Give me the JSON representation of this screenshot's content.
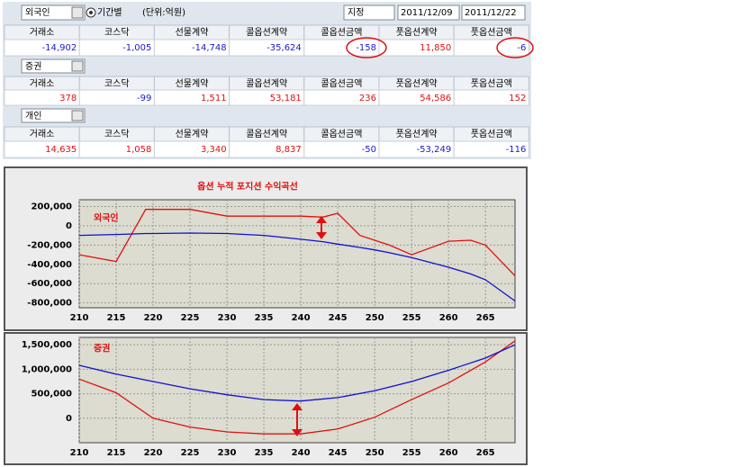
{
  "toolbar": {
    "investor": "외국인",
    "mode": "기간별",
    "unit": "(단위:억원)",
    "range_type": "지정",
    "start": "2011/12/09",
    "end": "2011/12/22"
  },
  "tables": [
    {
      "headers": [
        "거래소",
        "코스닥",
        "선물계약",
        "콜옵션계약",
        "콜옵션금액",
        "풋옵션계약",
        "풋옵션금액"
      ],
      "values": [
        "-14,902",
        "-1,005",
        "-14,748",
        "-35,624",
        "-158",
        "11,850",
        "-6"
      ]
    },
    {
      "label": "증권",
      "headers": [
        "거래소",
        "코스닥",
        "선물계약",
        "콜옵션계약",
        "콜옵션금액",
        "풋옵션계약",
        "풋옵션금액"
      ],
      "values": [
        "378",
        "-99",
        "1,511",
        "53,181",
        "236",
        "54,586",
        "152"
      ]
    },
    {
      "label": "개인",
      "headers": [
        "거래소",
        "코스닥",
        "선물계약",
        "콜옵션계약",
        "콜옵션금액",
        "풋옵션계약",
        "풋옵션금액"
      ],
      "values": [
        "14,635",
        "1,058",
        "3,340",
        "8,837",
        "-50",
        "-53,249",
        "-116"
      ]
    }
  ],
  "chart_data": [
    {
      "type": "line",
      "title": "옵션 누적 포지션 수익곡선",
      "annotation": "외국인",
      "x": [
        210,
        215,
        219,
        220,
        225,
        230,
        235,
        240,
        243,
        245,
        248,
        250,
        252,
        255,
        260,
        263,
        265,
        269
      ],
      "series": [
        {
          "color": "#e01010",
          "values": [
            -300000,
            -370000,
            170000,
            170000,
            170000,
            100000,
            100000,
            100000,
            90000,
            130000,
            -100000,
            -150000,
            -200000,
            -300000,
            -160000,
            -150000,
            -200000,
            -520000
          ]
        },
        {
          "color": "#1010d0",
          "values": [
            -100000,
            -90000,
            -80000,
            -80000,
            -75000,
            -80000,
            -100000,
            -140000,
            -165000,
            -190000,
            -225000,
            -250000,
            -280000,
            -330000,
            -430000,
            -500000,
            -560000,
            -780000
          ]
        }
      ],
      "xlim": [
        210,
        269
      ],
      "xticks": [
        210,
        215,
        220,
        225,
        230,
        235,
        240,
        245,
        250,
        255,
        260,
        265
      ],
      "ylim": [
        -850000,
        270000
      ],
      "yticks": [
        {
          "value": 200000,
          "label": "200,000"
        },
        0,
        {
          "value": -200000,
          "label": "-200,000"
        },
        {
          "value": -400000,
          "label": "-400,000"
        },
        {
          "value": -600000,
          "label": "-600,000"
        },
        {
          "value": -800000,
          "label": "-800,000"
        }
      ],
      "grid": true
    },
    {
      "type": "line",
      "annotation": "증권",
      "x": [
        210,
        215,
        220,
        225,
        230,
        235,
        240,
        245,
        250,
        255,
        260,
        265,
        269
      ],
      "series": [
        {
          "color": "#e01010",
          "values": [
            800000,
            520000,
            0,
            -180000,
            -280000,
            -320000,
            -320000,
            -220000,
            20000,
            380000,
            720000,
            1150000,
            1580000
          ]
        },
        {
          "color": "#1010d0",
          "values": [
            1080000,
            900000,
            750000,
            600000,
            480000,
            380000,
            350000,
            420000,
            560000,
            750000,
            980000,
            1230000,
            1500000
          ]
        }
      ],
      "xlim": [
        210,
        269
      ],
      "xticks": [
        210,
        215,
        220,
        225,
        230,
        235,
        240,
        245,
        250,
        255,
        260,
        265
      ],
      "ylim": [
        -500000,
        1650000
      ],
      "yticks": [
        {
          "value": 1500000,
          "label": "1,500,000"
        },
        {
          "value": 1000000,
          "label": "1,000,000"
        },
        {
          "value": 500000,
          "label": "500,000"
        },
        0
      ],
      "grid": true
    }
  ]
}
